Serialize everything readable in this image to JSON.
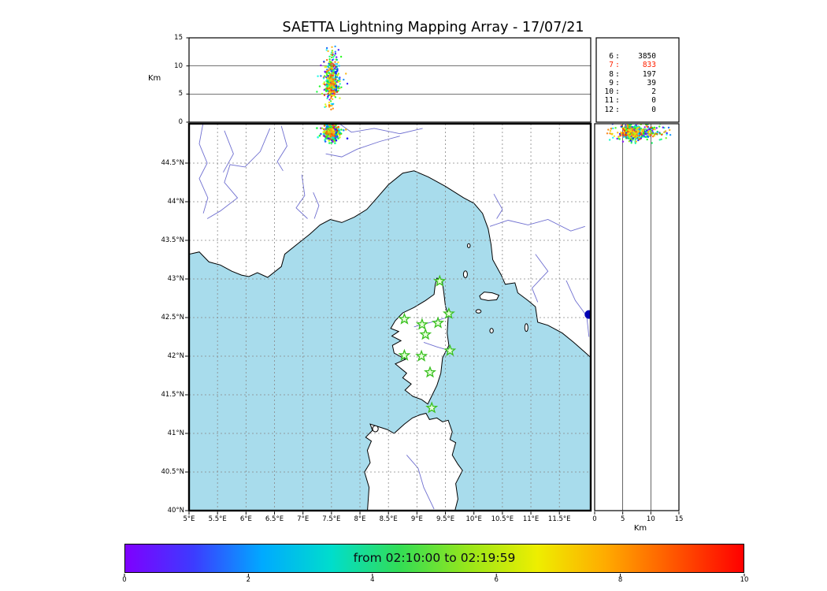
{
  "title": "SAETTA Lightning Mapping Array - 17/07/21",
  "top_panel": {
    "ylabel": "Km",
    "yticks": [
      {
        "label": "15",
        "km": 15
      },
      {
        "label": "10",
        "km": 10
      },
      {
        "label": "5",
        "km": 5
      },
      {
        "label": "0",
        "km": 0
      }
    ],
    "gridlines_km": [
      5,
      10
    ]
  },
  "stats": {
    "separator": ":",
    "highlight_color": "#ff2000",
    "rows": [
      {
        "alt": "6",
        "count": "3850",
        "highlight": false
      },
      {
        "alt": "7",
        "count": "833",
        "highlight": true
      },
      {
        "alt": "8",
        "count": "197",
        "highlight": false
      },
      {
        "alt": "9",
        "count": "39",
        "highlight": false
      },
      {
        "alt": "10",
        "count": "2",
        "highlight": false
      },
      {
        "alt": "11",
        "count": "0",
        "highlight": false
      },
      {
        "alt": "12",
        "count": "0",
        "highlight": false
      }
    ]
  },
  "right_panel": {
    "xlabel": "Km",
    "xticks": [
      {
        "label": "0",
        "km": 0
      },
      {
        "label": "5",
        "km": 5
      },
      {
        "label": "10",
        "km": 10
      },
      {
        "label": "15",
        "km": 15
      }
    ],
    "gridlines_km": [
      5,
      10
    ]
  },
  "colorbar": {
    "label": "from 02:10:00 to 02:19:59",
    "ticks": [
      {
        "label": "0",
        "v": 0
      },
      {
        "label": "2",
        "v": 2
      },
      {
        "label": "4",
        "v": 4
      },
      {
        "label": "6",
        "v": 6
      },
      {
        "label": "8",
        "v": 8
      },
      {
        "label": "10",
        "v": 10
      }
    ],
    "gradient_stops": [
      "#7f00ff",
      "#3c3cff",
      "#00aaff",
      "#00ddcc",
      "#33dd55",
      "#99e61a",
      "#eeee00",
      "#ffaa00",
      "#ff5500",
      "#ff0000"
    ]
  },
  "map": {
    "sea_color": "#a8dcec",
    "land_color": "#ffffff",
    "river_color": "#6f6fd0",
    "grid_color": "#888888",
    "station_color": "#38c01e",
    "xticks": [
      {
        "label": "5°E",
        "lon": 5
      },
      {
        "label": "5.5°E",
        "lon": 5.5
      },
      {
        "label": "6°E",
        "lon": 6
      },
      {
        "label": "6.5°E",
        "lon": 6.5
      },
      {
        "label": "7°E",
        "lon": 7
      },
      {
        "label": "7.5°E",
        "lon": 7.5
      },
      {
        "label": "8°E",
        "lon": 8
      },
      {
        "label": "8.5°E",
        "lon": 8.5
      },
      {
        "label": "9°E",
        "lon": 9
      },
      {
        "label": "9.5°E",
        "lon": 9.5
      },
      {
        "label": "10°E",
        "lon": 10
      },
      {
        "label": "10.5°E",
        "lon": 10.5
      },
      {
        "label": "11°E",
        "lon": 11
      },
      {
        "label": "11.5°E",
        "lon": 11.5
      }
    ],
    "yticks": [
      {
        "label": "40°N",
        "lat": 40
      },
      {
        "label": "40.5°N",
        "lat": 40.5
      },
      {
        "label": "41°N",
        "lat": 41
      },
      {
        "label": "41.5°N",
        "lat": 41.5
      },
      {
        "label": "42°N",
        "lat": 42
      },
      {
        "label": "42.5°N",
        "lat": 42.5
      },
      {
        "label": "43°N",
        "lat": 43
      },
      {
        "label": "43.5°N",
        "lat": 43.5
      },
      {
        "label": "44°N",
        "lat": 44
      },
      {
        "label": "44.5°N",
        "lat": 44.5
      }
    ],
    "geo": {
      "mainland": [
        [
          5.0,
          45.06
        ],
        [
          5.0,
          43.32
        ],
        [
          5.18,
          43.35
        ],
        [
          5.35,
          43.22
        ],
        [
          5.55,
          43.18
        ],
        [
          5.75,
          43.1
        ],
        [
          5.92,
          43.05
        ],
        [
          6.05,
          43.03
        ],
        [
          6.2,
          43.08
        ],
        [
          6.38,
          43.02
        ],
        [
          6.62,
          43.16
        ],
        [
          6.68,
          43.32
        ],
        [
          6.95,
          43.48
        ],
        [
          7.12,
          43.58
        ],
        [
          7.3,
          43.7
        ],
        [
          7.48,
          43.77
        ],
        [
          7.68,
          43.73
        ],
        [
          7.9,
          43.8
        ],
        [
          8.12,
          43.9
        ],
        [
          8.3,
          44.05
        ],
        [
          8.5,
          44.22
        ],
        [
          8.75,
          44.37
        ],
        [
          8.95,
          44.4
        ],
        [
          9.2,
          44.32
        ],
        [
          9.5,
          44.2
        ],
        [
          9.82,
          44.05
        ],
        [
          10.0,
          43.98
        ],
        [
          10.15,
          43.85
        ],
        [
          10.25,
          43.65
        ],
        [
          10.3,
          43.45
        ],
        [
          10.33,
          43.25
        ],
        [
          10.48,
          43.05
        ],
        [
          10.55,
          42.93
        ],
        [
          10.72,
          42.95
        ],
        [
          10.77,
          42.82
        ],
        [
          10.95,
          42.72
        ],
        [
          11.08,
          42.64
        ],
        [
          11.12,
          42.44
        ],
        [
          11.3,
          42.4
        ],
        [
          11.55,
          42.3
        ],
        [
          11.75,
          42.18
        ],
        [
          11.95,
          42.05
        ],
        [
          12.1,
          41.95
        ],
        [
          12.1,
          45.06
        ]
      ],
      "corsica": [
        [
          9.35,
          43.01
        ],
        [
          9.44,
          42.99
        ],
        [
          9.47,
          42.83
        ],
        [
          9.5,
          42.65
        ],
        [
          9.55,
          42.52
        ],
        [
          9.53,
          42.3
        ],
        [
          9.56,
          42.14
        ],
        [
          9.45,
          41.98
        ],
        [
          9.42,
          41.78
        ],
        [
          9.35,
          41.62
        ],
        [
          9.27,
          41.5
        ],
        [
          9.19,
          41.38
        ],
        [
          9.08,
          41.44
        ],
        [
          8.93,
          41.48
        ],
        [
          8.79,
          41.56
        ],
        [
          8.9,
          41.64
        ],
        [
          8.75,
          41.72
        ],
        [
          8.82,
          41.78
        ],
        [
          8.62,
          41.9
        ],
        [
          8.8,
          41.96
        ],
        [
          8.6,
          42.04
        ],
        [
          8.57,
          42.14
        ],
        [
          8.72,
          42.2
        ],
        [
          8.56,
          42.26
        ],
        [
          8.68,
          42.32
        ],
        [
          8.54,
          42.36
        ],
        [
          8.62,
          42.46
        ],
        [
          8.75,
          42.56
        ],
        [
          8.95,
          42.63
        ],
        [
          9.15,
          42.72
        ],
        [
          9.3,
          42.8
        ],
        [
          9.32,
          42.92
        ]
      ],
      "sardinia": [
        [
          8.13,
          39.98
        ],
        [
          8.16,
          40.3
        ],
        [
          8.08,
          40.5
        ],
        [
          8.18,
          40.62
        ],
        [
          8.13,
          40.78
        ],
        [
          8.2,
          40.9
        ],
        [
          8.1,
          40.95
        ],
        [
          8.22,
          41.04
        ],
        [
          8.18,
          41.12
        ],
        [
          8.48,
          41.05
        ],
        [
          8.6,
          41.0
        ],
        [
          8.78,
          41.12
        ],
        [
          8.92,
          41.2
        ],
        [
          9.05,
          41.24
        ],
        [
          9.16,
          41.26
        ],
        [
          9.22,
          41.18
        ],
        [
          9.35,
          41.2
        ],
        [
          9.45,
          41.15
        ],
        [
          9.55,
          41.17
        ],
        [
          9.62,
          41.02
        ],
        [
          9.58,
          40.92
        ],
        [
          9.68,
          40.88
        ],
        [
          9.62,
          40.72
        ],
        [
          9.72,
          40.6
        ],
        [
          9.8,
          40.52
        ],
        [
          9.68,
          40.35
        ],
        [
          9.72,
          40.15
        ],
        [
          9.66,
          39.98
        ]
      ],
      "elba": [
        [
          10.1,
          42.78
        ],
        [
          10.18,
          42.83
        ],
        [
          10.32,
          42.82
        ],
        [
          10.44,
          42.79
        ],
        [
          10.4,
          42.73
        ],
        [
          10.25,
          42.72
        ],
        [
          10.12,
          42.74
        ]
      ],
      "islands": [
        {
          "lon": 9.85,
          "lat": 43.06,
          "rx": 0.035,
          "ry": 0.045
        },
        {
          "lon": 9.91,
          "lat": 43.43,
          "rx": 0.025,
          "ry": 0.025
        },
        {
          "lon": 10.08,
          "lat": 42.58,
          "rx": 0.045,
          "ry": 0.022
        },
        {
          "lon": 10.31,
          "lat": 42.33,
          "rx": 0.03,
          "ry": 0.03
        },
        {
          "lon": 10.92,
          "lat": 42.37,
          "rx": 0.028,
          "ry": 0.05
        },
        {
          "lon": 8.27,
          "lat": 41.06,
          "rx": 0.05,
          "ry": 0.04
        }
      ],
      "rivers": [
        [
          [
            5.25,
            45.03
          ],
          [
            5.18,
            44.75
          ],
          [
            5.32,
            44.5
          ],
          [
            5.18,
            44.3
          ],
          [
            5.33,
            44.05
          ],
          [
            5.25,
            43.85
          ]
        ],
        [
          [
            6.42,
            44.95
          ],
          [
            6.25,
            44.65
          ],
          [
            5.98,
            44.45
          ],
          [
            5.72,
            44.48
          ],
          [
            5.62,
            44.25
          ],
          [
            5.85,
            44.05
          ],
          [
            5.55,
            43.88
          ],
          [
            5.32,
            43.78
          ]
        ],
        [
          [
            6.98,
            44.35
          ],
          [
            7.03,
            44.08
          ],
          [
            6.88,
            43.92
          ],
          [
            7.08,
            43.78
          ]
        ],
        [
          [
            6.62,
            44.98
          ],
          [
            6.72,
            44.72
          ],
          [
            6.55,
            44.52
          ],
          [
            6.65,
            44.4
          ]
        ],
        [
          [
            7.62,
            45.02
          ],
          [
            7.85,
            44.9
          ],
          [
            8.25,
            44.95
          ],
          [
            8.7,
            44.88
          ],
          [
            9.1,
            44.95
          ]
        ],
        [
          [
            7.4,
            44.62
          ],
          [
            7.68,
            44.58
          ],
          [
            7.95,
            44.68
          ],
          [
            8.35,
            44.78
          ],
          [
            8.7,
            44.85
          ]
        ],
        [
          [
            10.28,
            43.68
          ],
          [
            10.6,
            43.76
          ],
          [
            10.95,
            43.7
          ],
          [
            11.3,
            43.77
          ],
          [
            11.7,
            43.62
          ],
          [
            11.95,
            43.68
          ]
        ],
        [
          [
            11.08,
            43.32
          ],
          [
            11.3,
            43.1
          ],
          [
            11.02,
            42.88
          ],
          [
            11.12,
            42.7
          ]
        ],
        [
          [
            11.62,
            42.98
          ],
          [
            11.78,
            42.72
          ],
          [
            11.98,
            42.52
          ],
          [
            12.02,
            42.25
          ]
        ],
        [
          [
            10.35,
            44.1
          ],
          [
            10.5,
            43.9
          ],
          [
            10.4,
            43.78
          ]
        ],
        [
          [
            8.95,
            42.38
          ],
          [
            9.25,
            42.44
          ],
          [
            9.52,
            42.5
          ]
        ],
        [
          [
            9.12,
            42.18
          ],
          [
            9.35,
            42.12
          ],
          [
            9.54,
            42.08
          ]
        ],
        [
          [
            9.3,
            40.02
          ],
          [
            9.12,
            40.3
          ],
          [
            9.02,
            40.55
          ],
          [
            8.82,
            40.72
          ]
        ],
        [
          [
            7.18,
            44.12
          ],
          [
            7.28,
            43.95
          ],
          [
            7.2,
            43.78
          ]
        ],
        [
          [
            5.62,
            44.92
          ],
          [
            5.78,
            44.62
          ],
          [
            5.6,
            44.38
          ]
        ]
      ]
    }
  },
  "chart_data": [
    {
      "type": "scatter",
      "name": "altitude_vs_longitude",
      "ylabel": "Km",
      "ylim": [
        0,
        15
      ],
      "x_axis": "longitude_deg_E",
      "xlim": [
        5,
        12.05
      ],
      "gridlines_y": [
        5,
        10
      ],
      "note": "VHF lightning sources: altitude vs longitude, colored by time"
    },
    {
      "type": "table",
      "name": "source_counts_by_altitude_km",
      "columns": [
        "altitude_km",
        "count"
      ],
      "rows": [
        [
          6,
          3850
        ],
        [
          7,
          833
        ],
        [
          8,
          197
        ],
        [
          9,
          39
        ],
        [
          10,
          2
        ],
        [
          11,
          0
        ],
        [
          12,
          0
        ]
      ],
      "highlighted_altitude": 7
    },
    {
      "type": "scatter",
      "name": "plan_view_map",
      "x_axis": "longitude_deg_E",
      "y_axis": "latitude_deg_N",
      "xlim": [
        5,
        12.05
      ],
      "ylim": [
        40,
        45.01
      ],
      "cluster": {
        "lon_mean": 7.5,
        "lat_mean": 44.9,
        "lon_sigma": 0.06,
        "lat_sigma": 0.05,
        "alt_km_main_mode": 6.4,
        "alt_km_upper_mode": 9.2,
        "alt_km_range": [
          2,
          13.8
        ],
        "n_render_points": 520
      },
      "stations_lon_lat": [
        [
          9.4,
          42.97
        ],
        [
          8.78,
          42.48
        ],
        [
          9.09,
          42.41
        ],
        [
          9.37,
          42.43
        ],
        [
          9.56,
          42.55
        ],
        [
          9.15,
          42.28
        ],
        [
          8.78,
          42.01
        ],
        [
          9.08,
          42.0
        ],
        [
          9.58,
          42.07
        ],
        [
          9.23,
          41.79
        ],
        [
          9.26,
          41.33
        ]
      ],
      "extra_point": {
        "lon": 12.02,
        "lat": 42.54,
        "color": "#0000b4"
      }
    },
    {
      "type": "scatter",
      "name": "altitude_vs_latitude",
      "x_axis": "altitude_km",
      "xlim": [
        0,
        15
      ],
      "y_axis": "latitude_deg_N",
      "ylim": [
        40,
        45.01
      ],
      "gridlines_x": [
        5,
        10
      ]
    },
    {
      "type": "colorbar",
      "name": "time_colorbar",
      "title": "from 02:10:00 to 02:19:59",
      "time_start": "02:10:00",
      "time_end": "02:19:59",
      "ticks": [
        0,
        2,
        4,
        6,
        8,
        10
      ],
      "range": [
        0,
        10
      ],
      "colormap": "rainbow"
    }
  ]
}
